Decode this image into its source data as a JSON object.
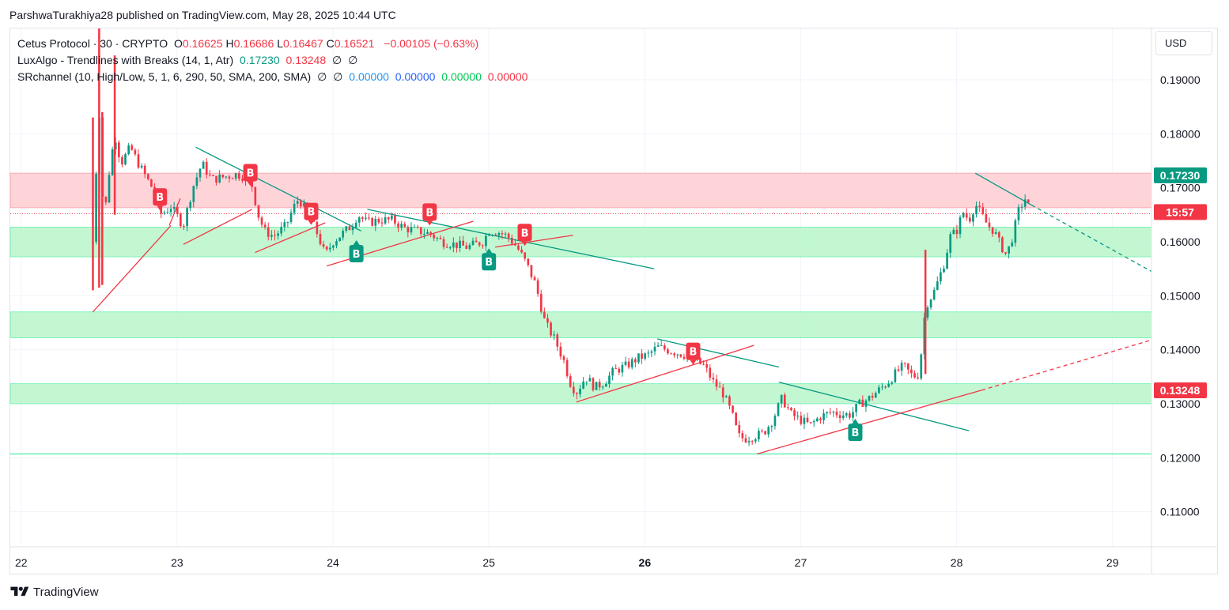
{
  "header": {
    "publish_line": "ParshwaTurakhiya28 published on TradingView.com, May 28, 2025 10:44 UTC"
  },
  "legend": {
    "symbol": "Cetus Protocol · 30 · CRYPTO",
    "o_label": "O",
    "o_value": "0.16625",
    "h_label": "H",
    "h_value": "0.16686",
    "l_label": "L",
    "l_value": "0.16467",
    "c_label": "C",
    "c_value": "0.16521",
    "change": "−0.00105 (−0.63%)",
    "luxalgo_name": "LuxAlgo - Trendlines with Breaks (14, 1, Atr)",
    "luxalgo_v1": "0.17230",
    "luxalgo_v2": "0.13248",
    "luxalgo_na1": "∅",
    "luxalgo_na2": "∅",
    "sr_name": "SRchannel (10, High/Low, 5, 1, 6, 290, 50, SMA, 200, SMA)",
    "sr_na1": "∅",
    "sr_na2": "∅",
    "sr_v1": "0.00000",
    "sr_v2": "0.00000",
    "sr_v3": "0.00000",
    "sr_v4": "0.00000"
  },
  "toolbar": {
    "currency": "USD"
  },
  "footer": {
    "brand": "TradingView"
  },
  "colors": {
    "up": "#089981",
    "down": "#f23645",
    "trend_teal": "#089981",
    "trend_red": "#f23645",
    "resistance_zone": "#ffcdd2",
    "support_zone": "#b9f6ca",
    "grid": "#f0f3fa"
  },
  "chart_data": {
    "type": "candlestick",
    "x_ticks": [
      {
        "day": 22,
        "label": "22"
      },
      {
        "day": 23,
        "label": "23"
      },
      {
        "day": 24,
        "label": "24"
      },
      {
        "day": 25,
        "label": "25"
      },
      {
        "day": 26,
        "label": "26"
      },
      {
        "day": 27,
        "label": "27"
      },
      {
        "day": 28,
        "label": "28"
      },
      {
        "day": 29,
        "label": "29"
      }
    ],
    "x_range": [
      21.93,
      29.25
    ],
    "y_ticks": [
      "0.19000",
      "0.18000",
      "0.17000",
      "0.16000",
      "0.15000",
      "0.14000",
      "0.13000",
      "0.12000",
      "0.11000"
    ],
    "ylim": [
      0.1035,
      0.1995
    ],
    "price_labels": [
      {
        "value": 0.1723,
        "text": "0.17230",
        "color": "#089981"
      },
      {
        "value": 0.1655,
        "text": "15:57",
        "color": "#f23645"
      },
      {
        "value": 0.13248,
        "text": "0.13248",
        "color": "#f23645"
      }
    ],
    "current_price": 0.1652,
    "zones": [
      {
        "kind": "resistance",
        "from": 0.1663,
        "to": 0.1727
      },
      {
        "kind": "support",
        "from": 0.1572,
        "to": 0.1627
      },
      {
        "kind": "support",
        "from": 0.1422,
        "to": 0.147
      },
      {
        "kind": "support",
        "from": 0.13,
        "to": 0.1337
      }
    ],
    "levels": [
      {
        "value": 0.1207
      }
    ],
    "close_path": [
      [
        22.46,
        0.16
      ],
      [
        22.5,
        0.185
      ],
      [
        22.53,
        0.163
      ],
      [
        22.56,
        0.172
      ],
      [
        22.6,
        0.18
      ],
      [
        22.64,
        0.1745
      ],
      [
        22.7,
        0.1775
      ],
      [
        22.76,
        0.174
      ],
      [
        22.84,
        0.17
      ],
      [
        22.9,
        0.165
      ],
      [
        22.96,
        0.1665
      ],
      [
        23.04,
        0.163
      ],
      [
        23.1,
        0.17
      ],
      [
        23.16,
        0.1745
      ],
      [
        23.22,
        0.1715
      ],
      [
        23.3,
        0.172
      ],
      [
        23.38,
        0.1725
      ],
      [
        23.44,
        0.172
      ],
      [
        23.48,
        0.1705
      ],
      [
        23.52,
        0.165
      ],
      [
        23.56,
        0.162
      ],
      [
        23.62,
        0.161
      ],
      [
        23.7,
        0.163
      ],
      [
        23.74,
        0.166
      ],
      [
        23.78,
        0.168
      ],
      [
        23.84,
        0.165
      ],
      [
        23.9,
        0.1615
      ],
      [
        23.95,
        0.1575
      ],
      [
        24.0,
        0.16
      ],
      [
        24.06,
        0.1615
      ],
      [
        24.12,
        0.163
      ],
      [
        24.16,
        0.165
      ],
      [
        24.22,
        0.1635
      ],
      [
        24.3,
        0.164
      ],
      [
        24.38,
        0.164
      ],
      [
        24.46,
        0.1625
      ],
      [
        24.54,
        0.162
      ],
      [
        24.62,
        0.1615
      ],
      [
        24.7,
        0.16
      ],
      [
        24.78,
        0.1595
      ],
      [
        24.86,
        0.159
      ],
      [
        24.96,
        0.16
      ],
      [
        25.0,
        0.162
      ],
      [
        25.06,
        0.1618
      ],
      [
        25.12,
        0.161
      ],
      [
        25.18,
        0.159
      ],
      [
        25.24,
        0.156
      ],
      [
        25.3,
        0.152
      ],
      [
        25.36,
        0.145
      ],
      [
        25.42,
        0.142
      ],
      [
        25.48,
        0.138
      ],
      [
        25.52,
        0.134
      ],
      [
        25.56,
        0.132
      ],
      [
        25.62,
        0.135
      ],
      [
        25.68,
        0.133
      ],
      [
        25.74,
        0.134
      ],
      [
        25.8,
        0.136
      ],
      [
        25.88,
        0.137
      ],
      [
        25.96,
        0.1385
      ],
      [
        26.02,
        0.139
      ],
      [
        26.08,
        0.1405
      ],
      [
        26.14,
        0.14
      ],
      [
        26.2,
        0.1395
      ],
      [
        26.26,
        0.139
      ],
      [
        26.32,
        0.138
      ],
      [
        26.38,
        0.137
      ],
      [
        26.44,
        0.134
      ],
      [
        26.5,
        0.132
      ],
      [
        26.56,
        0.128
      ],
      [
        26.6,
        0.124
      ],
      [
        26.64,
        0.1235
      ],
      [
        26.7,
        0.124
      ],
      [
        26.76,
        0.1245
      ],
      [
        26.82,
        0.127
      ],
      [
        26.88,
        0.131
      ],
      [
        26.94,
        0.128
      ],
      [
        27.0,
        0.127
      ],
      [
        27.06,
        0.126
      ],
      [
        27.12,
        0.1275
      ],
      [
        27.2,
        0.1285
      ],
      [
        27.26,
        0.128
      ],
      [
        27.32,
        0.128
      ],
      [
        27.38,
        0.13
      ],
      [
        27.44,
        0.131
      ],
      [
        27.5,
        0.1325
      ],
      [
        27.56,
        0.134
      ],
      [
        27.62,
        0.136
      ],
      [
        27.66,
        0.137
      ],
      [
        27.72,
        0.135
      ],
      [
        27.76,
        0.1355
      ],
      [
        27.8,
        0.148
      ],
      [
        27.86,
        0.151
      ],
      [
        27.92,
        0.156
      ],
      [
        27.96,
        0.161
      ],
      [
        28.0,
        0.162
      ],
      [
        28.04,
        0.1655
      ],
      [
        28.08,
        0.164
      ],
      [
        28.12,
        0.167
      ],
      [
        28.16,
        0.165
      ],
      [
        28.2,
        0.163
      ],
      [
        28.24,
        0.162
      ],
      [
        28.28,
        0.1595
      ],
      [
        28.32,
        0.1575
      ],
      [
        28.36,
        0.161
      ],
      [
        28.4,
        0.166
      ],
      [
        28.44,
        0.168
      ],
      [
        28.48,
        0.1652
      ]
    ],
    "spikes": [
      {
        "x": 22.46,
        "high": 0.183,
        "low": 0.151
      },
      {
        "x": 22.5,
        "high": 0.1995,
        "low": 0.1515
      },
      {
        "x": 22.52,
        "high": 0.184,
        "low": 0.152
      },
      {
        "x": 22.6,
        "high": 0.1945,
        "low": 0.165
      },
      {
        "x": 27.8,
        "high": 0.1585,
        "low": 0.1355
      }
    ],
    "trendlines": [
      {
        "color": "teal",
        "from": [
          23.12,
          0.1775
        ],
        "to": [
          24.18,
          0.162
        ]
      },
      {
        "color": "teal",
        "from": [
          24.22,
          0.166
        ],
        "to": [
          26.06,
          0.155
        ]
      },
      {
        "color": "teal",
        "from": [
          26.08,
          0.142
        ],
        "to": [
          26.86,
          0.1368
        ]
      },
      {
        "color": "teal",
        "from": [
          26.86,
          0.134
        ],
        "to": [
          28.08,
          0.125
        ]
      },
      {
        "color": "teal",
        "from": [
          28.12,
          0.1727
        ],
        "to": [
          28.48,
          0.1668
        ]
      },
      {
        "color": "teal",
        "dashed": true,
        "from": [
          28.48,
          0.1668
        ],
        "to": [
          29.25,
          0.1545
        ]
      },
      {
        "color": "red",
        "from": [
          22.46,
          0.147
        ],
        "to": [
          22.96,
          0.163
        ]
      },
      {
        "color": "red",
        "from": [
          22.95,
          0.163
        ],
        "to": [
          23.02,
          0.168
        ]
      },
      {
        "color": "red",
        "from": [
          23.04,
          0.1595
        ],
        "to": [
          23.48,
          0.166
        ]
      },
      {
        "color": "red",
        "from": [
          23.5,
          0.158
        ],
        "to": [
          23.95,
          0.1635
        ]
      },
      {
        "color": "red",
        "from": [
          23.96,
          0.1555
        ],
        "to": [
          24.9,
          0.1638
        ]
      },
      {
        "color": "red",
        "from": [
          25.04,
          0.159
        ],
        "to": [
          25.54,
          0.1612
        ]
      },
      {
        "color": "red",
        "from": [
          25.56,
          0.1303
        ],
        "to": [
          26.7,
          0.1408
        ]
      },
      {
        "color": "red",
        "from": [
          26.72,
          0.1207
        ],
        "to": [
          28.16,
          0.1325
        ]
      },
      {
        "color": "red",
        "dashed": true,
        "from": [
          28.16,
          0.1325
        ],
        "to": [
          29.25,
          0.1418
        ]
      }
    ],
    "signals": [
      {
        "type": "break-down",
        "x": 22.89,
        "y": 0.1683,
        "label": "B"
      },
      {
        "type": "break-down",
        "x": 23.47,
        "y": 0.1728,
        "label": "B"
      },
      {
        "type": "break-down",
        "x": 23.86,
        "y": 0.1656,
        "label": "B"
      },
      {
        "type": "break-up",
        "x": 24.15,
        "y": 0.1578,
        "label": "B"
      },
      {
        "type": "break-down",
        "x": 24.62,
        "y": 0.1655,
        "label": "B"
      },
      {
        "type": "break-up",
        "x": 25.0,
        "y": 0.1563,
        "label": "B"
      },
      {
        "type": "break-down",
        "x": 25.23,
        "y": 0.1617,
        "label": "B"
      },
      {
        "type": "break-down",
        "x": 26.31,
        "y": 0.1397,
        "label": "B"
      },
      {
        "type": "break-up",
        "x": 27.35,
        "y": 0.1247,
        "label": "B"
      }
    ]
  }
}
